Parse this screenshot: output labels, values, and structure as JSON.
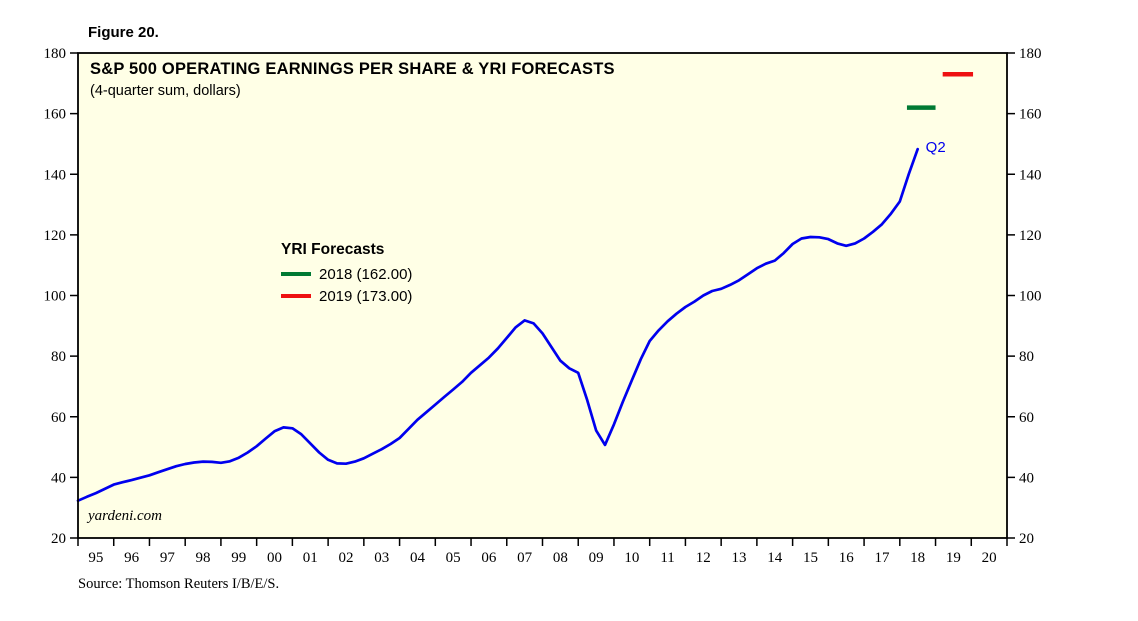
{
  "figure_label": "Figure 20.",
  "title": "S&P 500 OPERATING EARNINGS PER SHARE & YRI FORECASTS",
  "subtitle": "(4-quarter sum, dollars)",
  "watermark": "yardeni.com",
  "source": "Source: Thomson Reuters I/B/E/S.",
  "legend": {
    "title": "YRI Forecasts"
  },
  "colors": {
    "plot_bg": "#FFFFE6",
    "axis": "#000000",
    "line": "#0000EE",
    "forecast_2018": "#007A33",
    "forecast_2019": "#EE1111"
  },
  "chart_data": {
    "type": "line",
    "title": "S&P 500 OPERATING EARNINGS PER SHARE & YRI FORECASTS",
    "subtitle": "(4-quarter sum, dollars)",
    "xlabel": "",
    "ylabel": "",
    "xlim": [
      1995,
      2021
    ],
    "ylim": [
      20,
      180
    ],
    "grid": false,
    "legend_position": "inside-center-left",
    "y_ticks": [
      20,
      40,
      60,
      80,
      100,
      120,
      140,
      160,
      180
    ],
    "x_tick_labels": [
      "95",
      "96",
      "97",
      "98",
      "99",
      "00",
      "01",
      "02",
      "03",
      "04",
      "05",
      "06",
      "07",
      "08",
      "09",
      "10",
      "11",
      "12",
      "13",
      "14",
      "15",
      "16",
      "17",
      "18",
      "19",
      "20"
    ],
    "series": [
      {
        "name": "S&P 500 operating earnings per share (4-quarter sum, dollars)",
        "color": "#0000EE",
        "x_start": 1995.0,
        "x_step": 0.25,
        "last_point_label": "Q2",
        "last_point_value": 148.3,
        "values": [
          32.3,
          33.6,
          34.8,
          36.2,
          37.6,
          38.4,
          39.1,
          39.9,
          40.7,
          41.7,
          42.7,
          43.7,
          44.4,
          44.9,
          45.2,
          45.1,
          44.8,
          45.3,
          46.5,
          48.2,
          50.3,
          52.8,
          55.2,
          56.5,
          56.2,
          54.2,
          51.2,
          48.2,
          45.8,
          44.6,
          44.5,
          45.2,
          46.3,
          47.8,
          49.3,
          51.0,
          53.0,
          56.0,
          59.0,
          61.5,
          64.0,
          66.5,
          69.0,
          71.5,
          74.5,
          77.0,
          79.5,
          82.5,
          86.0,
          89.5,
          91.8,
          90.8,
          87.5,
          83.0,
          78.5,
          76.0,
          74.5,
          65.5,
          55.5,
          50.7,
          57.5,
          65.0,
          72.0,
          79.0,
          85.0,
          88.5,
          91.5,
          94.0,
          96.2,
          98.0,
          100.0,
          101.5,
          102.2,
          103.5,
          105.0,
          107.0,
          109.0,
          110.5,
          111.5,
          114.0,
          117.0,
          118.8,
          119.3,
          119.2,
          118.6,
          117.2,
          116.4,
          117.2,
          118.8,
          121.0,
          123.5,
          127.0,
          131.0,
          140.0,
          148.3
        ]
      }
    ],
    "forecasts": [
      {
        "label": "2018 (162.00)",
        "year": 2018,
        "value": 162.0,
        "x_start": 2018.2,
        "x_end": 2019.0,
        "color": "#007A33"
      },
      {
        "label": "2019 (173.00)",
        "year": 2019,
        "value": 173.0,
        "x_start": 2019.2,
        "x_end": 2020.05,
        "color": "#EE1111"
      }
    ]
  }
}
